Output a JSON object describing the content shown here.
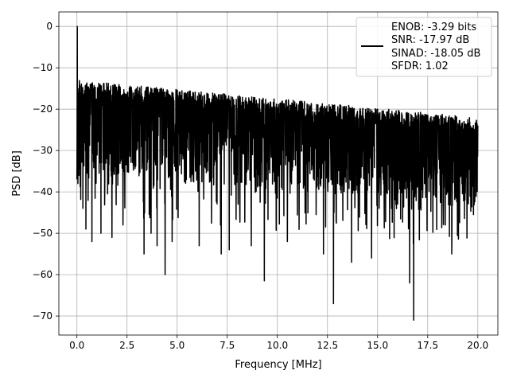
{
  "chart_data": {
    "type": "line",
    "xlabel": "Frequency [MHz]",
    "ylabel": "PSD [dB]",
    "xlim": [
      -0.9,
      21.0
    ],
    "ylim": [
      -74.6,
      3.5
    ],
    "xticks": [
      0.0,
      2.5,
      5.0,
      7.5,
      10.0,
      12.5,
      15.0,
      17.5,
      20.0
    ],
    "xtick_labels": [
      "0.0",
      "2.5",
      "5.0",
      "7.5",
      "10.0",
      "12.5",
      "15.0",
      "17.5",
      "20.0"
    ],
    "yticks": [
      0,
      -10,
      -20,
      -30,
      -40,
      -50,
      -60,
      -70
    ],
    "ytick_labels": [
      "0",
      "−10",
      "−20",
      "−30",
      "−40",
      "−50",
      "−60",
      "−70"
    ],
    "grid": true,
    "legend": {
      "placement": "top-right",
      "lines": [
        "ENOB: -3.29 bits",
        "SNR: -17.97 dB",
        "SINAD: -18.05 dB",
        "SFDR: 1.02"
      ]
    },
    "series": [
      {
        "color": "#000000",
        "x_range": [
          0.0,
          20.0
        ],
        "description_points": [
          {
            "x": 0.0,
            "y": -37
          },
          {
            "x": 0.02,
            "y": 0
          },
          {
            "x": 0.05,
            "y": -10
          },
          {
            "x": 0.08,
            "y": -25
          },
          {
            "x": 0.3,
            "y": -44
          },
          {
            "x": 0.45,
            "y": -49
          },
          {
            "x": 0.75,
            "y": -52
          },
          {
            "x": 1.2,
            "y": -50
          },
          {
            "x": 1.75,
            "y": -51
          },
          {
            "x": 2.3,
            "y": -48
          },
          {
            "x": 3.35,
            "y": -55
          },
          {
            "x": 3.7,
            "y": -50
          },
          {
            "x": 4.0,
            "y": -53
          },
          {
            "x": 4.4,
            "y": -60
          },
          {
            "x": 4.75,
            "y": -52
          },
          {
            "x": 6.1,
            "y": -53
          },
          {
            "x": 7.2,
            "y": -55
          },
          {
            "x": 7.6,
            "y": -54
          },
          {
            "x": 8.7,
            "y": -53
          },
          {
            "x": 9.35,
            "y": -61.5
          },
          {
            "x": 10.5,
            "y": -52
          },
          {
            "x": 12.3,
            "y": -55
          },
          {
            "x": 12.8,
            "y": -67
          },
          {
            "x": 13.7,
            "y": -57
          },
          {
            "x": 14.7,
            "y": -56
          },
          {
            "x": 16.6,
            "y": -62
          },
          {
            "x": 16.8,
            "y": -71
          },
          {
            "x": 18.7,
            "y": -55
          }
        ]
      }
    ]
  }
}
